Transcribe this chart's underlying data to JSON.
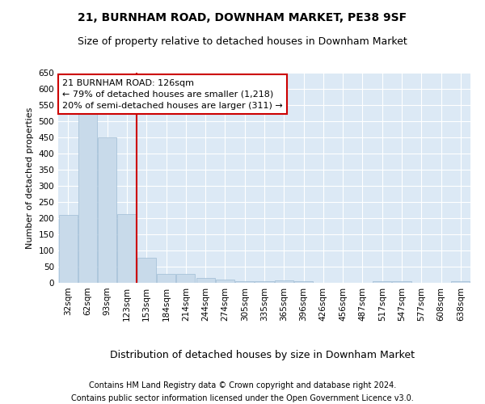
{
  "title1": "21, BURNHAM ROAD, DOWNHAM MARKET, PE38 9SF",
  "title2": "Size of property relative to detached houses in Downham Market",
  "xlabel": "Distribution of detached houses by size in Downham Market",
  "ylabel": "Number of detached properties",
  "categories": [
    "32sqm",
    "62sqm",
    "93sqm",
    "123sqm",
    "153sqm",
    "184sqm",
    "214sqm",
    "244sqm",
    "274sqm",
    "305sqm",
    "335sqm",
    "365sqm",
    "396sqm",
    "426sqm",
    "456sqm",
    "487sqm",
    "517sqm",
    "547sqm",
    "577sqm",
    "608sqm",
    "638sqm"
  ],
  "values": [
    210,
    530,
    450,
    213,
    78,
    28,
    28,
    14,
    11,
    5,
    5,
    8,
    5,
    0,
    0,
    0,
    4,
    4,
    0,
    0,
    5
  ],
  "bar_color": "#c8daea",
  "bar_edge_color": "#a0bdd4",
  "vline_x": 3.5,
  "vline_color": "#cc0000",
  "annotation_line1": "21 BURNHAM ROAD: 126sqm",
  "annotation_line2": "← 79% of detached houses are smaller (1,218)",
  "annotation_line3": "20% of semi-detached houses are larger (311) →",
  "annotation_box_color": "#ffffff",
  "annotation_box_edge": "#cc0000",
  "ylim": [
    0,
    650
  ],
  "yticks": [
    0,
    50,
    100,
    150,
    200,
    250,
    300,
    350,
    400,
    450,
    500,
    550,
    600,
    650
  ],
  "footer1": "Contains HM Land Registry data © Crown copyright and database right 2024.",
  "footer2": "Contains public sector information licensed under the Open Government Licence v3.0.",
  "plot_bg_color": "#dce9f5",
  "grid_color": "#ffffff",
  "title1_fontsize": 10,
  "title2_fontsize": 9,
  "xlabel_fontsize": 9,
  "ylabel_fontsize": 8,
  "tick_fontsize": 7.5,
  "annotation_fontsize": 8,
  "footer_fontsize": 7
}
